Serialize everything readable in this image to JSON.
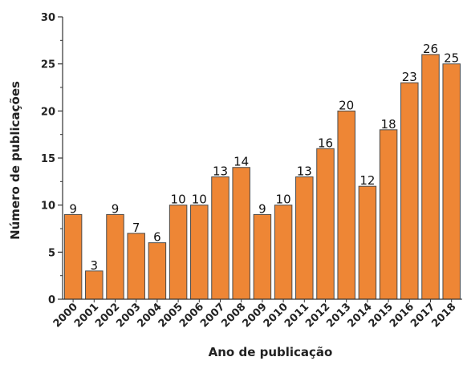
{
  "chart_data": {
    "type": "bar",
    "title": "",
    "xlabel": "Ano de publicação",
    "ylabel": "Número de publicações",
    "categories": [
      "2000",
      "2001",
      "2002",
      "2003",
      "2004",
      "2005",
      "2006",
      "2007",
      "2008",
      "2009",
      "2010",
      "2011",
      "2012",
      "2013",
      "2014",
      "2015",
      "2016",
      "2017",
      "2018"
    ],
    "values": [
      9,
      3,
      9,
      7,
      6,
      10,
      10,
      13,
      14,
      9,
      10,
      13,
      16,
      20,
      12,
      18,
      23,
      26,
      25
    ],
    "data_labels": [
      "9",
      "3",
      "9",
      "7",
      "6",
      "10",
      "10",
      "13",
      "14",
      "9",
      "10",
      "13",
      "16",
      "20",
      "12",
      "18",
      "23",
      "26",
      "25"
    ],
    "ylim": [
      0,
      30
    ],
    "yticks": [
      0,
      5,
      10,
      15,
      20,
      25,
      30
    ],
    "ytick_labels": [
      "0",
      "5",
      "10",
      "15",
      "20",
      "25",
      "30"
    ],
    "grid": false,
    "legend": "none",
    "colors": {
      "bar_fill": "#ee8635",
      "bar_stroke": "#4a4a4a",
      "axis": "#333333"
    }
  }
}
